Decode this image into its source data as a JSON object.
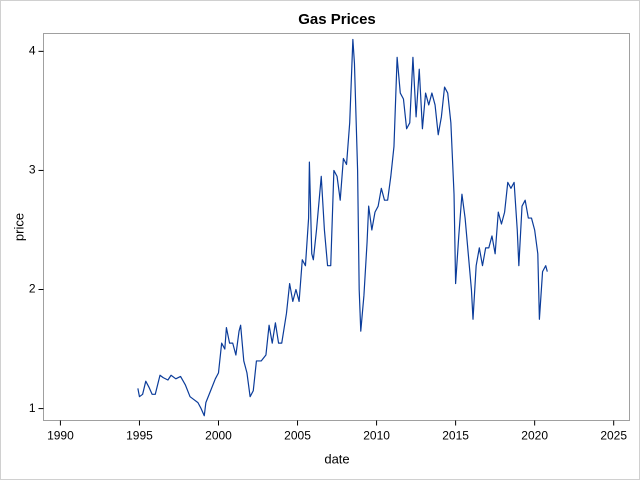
{
  "chart_data": {
    "type": "line",
    "title": "Gas Prices",
    "x_label": "date",
    "y_label": "price",
    "color": "#0b3c9a",
    "xlim": [
      1988.93,
      2026.0
    ],
    "xticks": [
      1990,
      1995,
      2000,
      2005,
      2010,
      2015,
      2020,
      2025
    ],
    "ylim": [
      0.9,
      4.15
    ],
    "yticks": [
      1,
      2,
      3,
      4
    ],
    "x": [
      1994.9,
      1995.0,
      1995.2,
      1995.4,
      1995.6,
      1995.8,
      1996.0,
      1996.3,
      1996.5,
      1996.8,
      1997.0,
      1997.3,
      1997.6,
      1997.9,
      1998.2,
      1998.4,
      1998.7,
      1998.9,
      1999.1,
      1999.2,
      1999.5,
      1999.8,
      2000.0,
      2000.2,
      2000.4,
      2000.5,
      2000.7,
      2000.9,
      2001.1,
      2001.3,
      2001.4,
      2001.6,
      2001.8,
      2002.0,
      2002.2,
      2002.4,
      2002.7,
      2003.0,
      2003.2,
      2003.4,
      2003.6,
      2003.8,
      2004.0,
      2004.3,
      2004.5,
      2004.7,
      2004.9,
      2005.1,
      2005.3,
      2005.5,
      2005.7,
      2005.75,
      2005.9,
      2006.0,
      2006.2,
      2006.5,
      2006.7,
      2006.9,
      2007.1,
      2007.3,
      2007.5,
      2007.7,
      2007.9,
      2008.1,
      2008.3,
      2008.5,
      2008.6,
      2008.8,
      2008.9,
      2009.0,
      2009.2,
      2009.4,
      2009.5,
      2009.7,
      2009.9,
      2010.1,
      2010.3,
      2010.5,
      2010.7,
      2010.9,
      2011.1,
      2011.3,
      2011.5,
      2011.7,
      2011.9,
      2012.1,
      2012.3,
      2012.5,
      2012.7,
      2012.9,
      2013.1,
      2013.3,
      2013.5,
      2013.7,
      2013.9,
      2014.1,
      2014.3,
      2014.5,
      2014.7,
      2014.9,
      2015.0,
      2015.2,
      2015.4,
      2015.6,
      2015.8,
      2016.0,
      2016.1,
      2016.3,
      2016.5,
      2016.7,
      2016.9,
      2017.1,
      2017.3,
      2017.5,
      2017.7,
      2017.9,
      2018.1,
      2018.3,
      2018.5,
      2018.7,
      2018.9,
      2019.0,
      2019.2,
      2019.4,
      2019.6,
      2019.8,
      2020.0,
      2020.2,
      2020.3,
      2020.5,
      2020.7,
      2020.8
    ],
    "values": [
      1.17,
      1.1,
      1.12,
      1.23,
      1.18,
      1.12,
      1.12,
      1.28,
      1.26,
      1.24,
      1.28,
      1.25,
      1.27,
      1.2,
      1.1,
      1.08,
      1.05,
      1.0,
      0.94,
      1.05,
      1.15,
      1.25,
      1.3,
      1.55,
      1.5,
      1.68,
      1.55,
      1.55,
      1.45,
      1.65,
      1.7,
      1.4,
      1.3,
      1.1,
      1.15,
      1.4,
      1.4,
      1.45,
      1.7,
      1.55,
      1.72,
      1.55,
      1.55,
      1.8,
      2.05,
      1.9,
      2.0,
      1.9,
      2.25,
      2.2,
      2.6,
      3.07,
      2.3,
      2.25,
      2.5,
      2.95,
      2.5,
      2.2,
      2.2,
      3.0,
      2.95,
      2.75,
      3.1,
      3.05,
      3.4,
      4.1,
      3.9,
      3.0,
      2.0,
      1.65,
      1.95,
      2.4,
      2.7,
      2.5,
      2.65,
      2.7,
      2.85,
      2.75,
      2.75,
      2.95,
      3.2,
      3.95,
      3.65,
      3.6,
      3.35,
      3.4,
      3.95,
      3.45,
      3.85,
      3.35,
      3.65,
      3.55,
      3.65,
      3.55,
      3.3,
      3.45,
      3.7,
      3.65,
      3.4,
      2.8,
      2.05,
      2.45,
      2.8,
      2.6,
      2.3,
      2.0,
      1.75,
      2.2,
      2.35,
      2.2,
      2.35,
      2.35,
      2.45,
      2.3,
      2.65,
      2.55,
      2.65,
      2.9,
      2.85,
      2.9,
      2.5,
      2.2,
      2.7,
      2.75,
      2.6,
      2.6,
      2.5,
      2.3,
      1.75,
      2.15,
      2.2,
      2.15
    ]
  }
}
